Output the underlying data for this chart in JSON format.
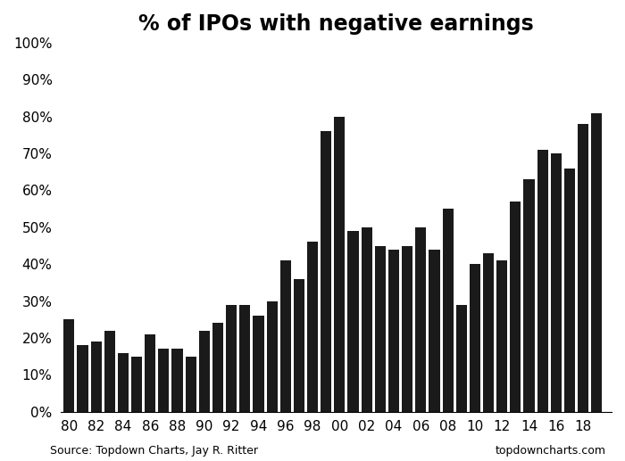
{
  "title": "% of IPOs with negative earnings",
  "years": [
    1980,
    1981,
    1982,
    1983,
    1984,
    1985,
    1986,
    1987,
    1988,
    1989,
    1990,
    1991,
    1992,
    1993,
    1994,
    1995,
    1996,
    1997,
    1998,
    1999,
    2000,
    2001,
    2002,
    2003,
    2004,
    2005,
    2006,
    2007,
    2008,
    2009,
    2010,
    2011,
    2012,
    2013,
    2014,
    2015,
    2016,
    2017,
    2018,
    2019
  ],
  "values": [
    0.25,
    0.18,
    0.19,
    0.22,
    0.16,
    0.15,
    0.21,
    0.17,
    0.17,
    0.15,
    0.22,
    0.24,
    0.29,
    0.29,
    0.26,
    0.3,
    0.41,
    0.36,
    0.46,
    0.76,
    0.8,
    0.49,
    0.5,
    0.45,
    0.44,
    0.45,
    0.5,
    0.44,
    0.55,
    0.29,
    0.4,
    0.43,
    0.41,
    0.57,
    0.63,
    0.71,
    0.7,
    0.66,
    0.78,
    0.81
  ],
  "bar_color": "#1a1a1a",
  "background_color": "#ffffff",
  "xlim_left": 1979.4,
  "xlim_right": 2020.1,
  "ylim": [
    0,
    1.0
  ],
  "ytick_vals": [
    0.0,
    0.1,
    0.2,
    0.3,
    0.4,
    0.5,
    0.6,
    0.7,
    0.8,
    0.9,
    1.0
  ],
  "xtick_vals": [
    1980,
    1982,
    1984,
    1986,
    1988,
    1990,
    1992,
    1994,
    1996,
    1998,
    2000,
    2002,
    2004,
    2006,
    2008,
    2010,
    2012,
    2014,
    2016,
    2018
  ],
  "xtick_labels": [
    "80",
    "82",
    "84",
    "86",
    "88",
    "90",
    "92",
    "94",
    "96",
    "98",
    "00",
    "02",
    "04",
    "06",
    "08",
    "10",
    "12",
    "14",
    "16",
    "18"
  ],
  "source_left": "Source: Topdown Charts, Jay R. Ritter",
  "source_right": "topdowncharts.com",
  "title_fontsize": 17,
  "tick_fontsize": 11,
  "source_fontsize": 9,
  "bar_width": 0.8
}
